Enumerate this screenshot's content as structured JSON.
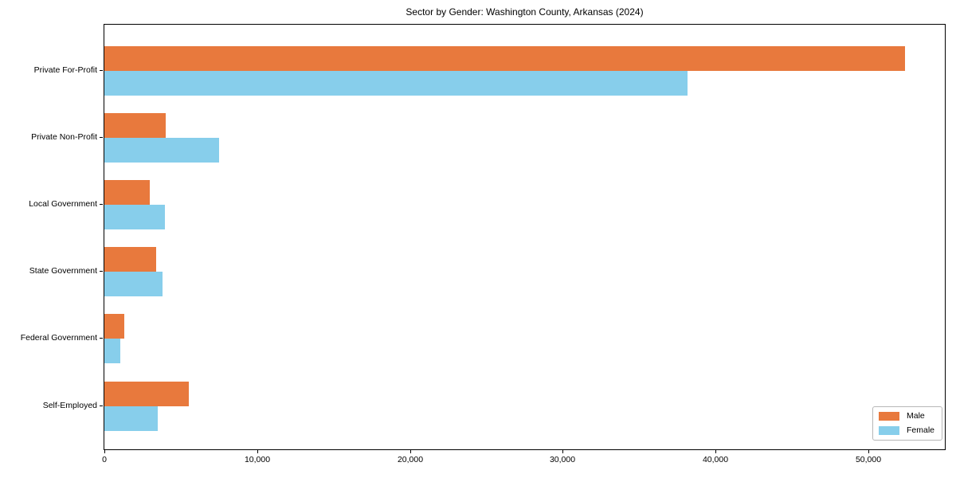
{
  "chart_data": {
    "type": "bar",
    "orientation": "horizontal",
    "title": "Sector by Gender: Washington County, Arkansas (2024)",
    "categories": [
      "Private For-Profit",
      "Private Non-Profit",
      "Local Government",
      "State Government",
      "Federal Government",
      "Self-Employed"
    ],
    "series": [
      {
        "name": "Male",
        "color": "#E8793D",
        "values": [
          52400,
          4000,
          2950,
          3400,
          1300,
          5500
        ]
      },
      {
        "name": "Female",
        "color": "#87CEEB",
        "values": [
          38150,
          7500,
          3950,
          3800,
          1050,
          3500
        ]
      }
    ],
    "xlabel": "",
    "ylabel": "",
    "xlim": [
      0,
      55000
    ],
    "x_ticks": [
      0,
      10000,
      20000,
      30000,
      40000,
      50000
    ],
    "x_tick_labels": [
      "0",
      "10,000",
      "20,000",
      "30,000",
      "40,000",
      "50,000"
    ],
    "legend_position": "lower right",
    "grid": false
  }
}
